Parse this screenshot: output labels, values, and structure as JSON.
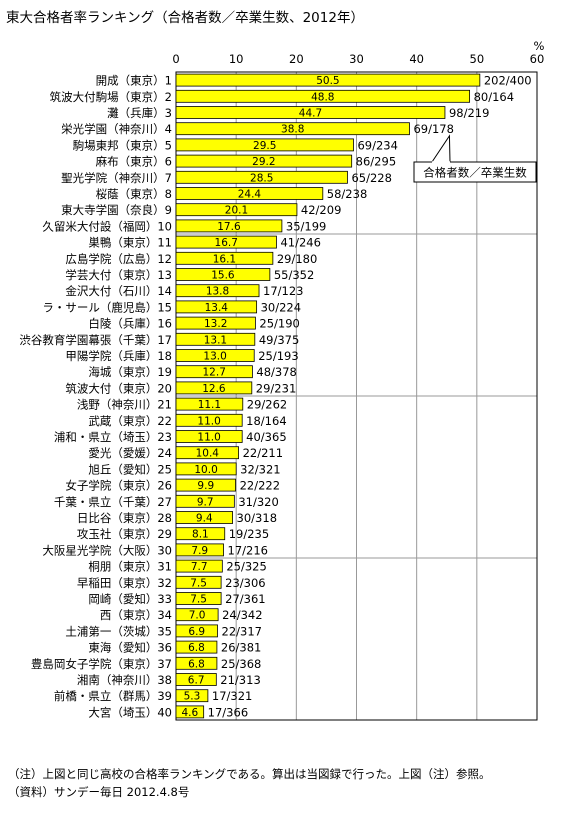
{
  "title": "東大合格者率ランキング（合格者数／卒業生数、2012年）",
  "callout": "合格者数／卒業生数",
  "footnotes": [
    "（注）上図と同じ高校の合格率ランキングである。算出は当図録で行った。上図（注）参照。",
    "（資料）サンデー毎日 2012.4.8号"
  ],
  "colors": {
    "bar": "#ffff00",
    "bar_stroke": "#000000",
    "grid": "#999999"
  },
  "chart_data": {
    "type": "bar",
    "orientation": "horizontal",
    "unit": "%",
    "xlim": [
      0,
      60
    ],
    "xticks": [
      0,
      10,
      20,
      30,
      40,
      50,
      60
    ],
    "grid": true,
    "categories": [
      "開成（東京）1",
      "筑波大付駒場（東京）2",
      "灘（兵庫）3",
      "栄光学園（神奈川）4",
      "駒場東邦（東京）5",
      "麻布（東京）6",
      "聖光学院（神奈川）7",
      "桜蔭（東京）8",
      "東大寺学園（奈良）9",
      "久留米大付設（福岡）10",
      "巣鴨（東京）11",
      "広島学院（広島）12",
      "学芸大付（東京）13",
      "金沢大付（石川）14",
      "ラ・サール（鹿児島）15",
      "白陵（兵庫）16",
      "渋谷教育学園幕張（千葉）17",
      "甲陽学院（兵庫）18",
      "海城（東京）19",
      "筑波大付（東京）20",
      "浅野（神奈川）21",
      "武蔵（東京）22",
      "浦和・県立（埼玉）23",
      "愛光（愛媛）24",
      "旭丘（愛知）25",
      "女子学院（東京）26",
      "千葉・県立（千葉）27",
      "日比谷（東京）28",
      "攻玉社（東京）29",
      "大阪星光学院（大阪）30",
      "桐朋（東京）31",
      "早稲田（東京）32",
      "岡崎（愛知）33",
      "西（東京）34",
      "土浦第一（茨城）35",
      "東海（愛知）36",
      "豊島岡女子学院（東京）37",
      "湘南（神奈川）38",
      "前橋・県立（群馬）39",
      "大宮（埼玉）40"
    ],
    "values": [
      50.5,
      48.8,
      44.7,
      38.8,
      29.5,
      29.2,
      28.5,
      24.4,
      20.1,
      17.6,
      16.7,
      16.1,
      15.6,
      13.8,
      13.4,
      13.2,
      13.1,
      13.0,
      12.7,
      12.6,
      11.1,
      11.0,
      11.0,
      10.4,
      10.0,
      9.9,
      9.7,
      9.4,
      8.1,
      7.9,
      7.7,
      7.5,
      7.5,
      7.0,
      6.9,
      6.8,
      6.8,
      6.7,
      5.3,
      4.6
    ],
    "value_labels": [
      "50.5",
      "48.8",
      "44.7",
      "38.8",
      "29.5",
      "29.2",
      "28.5",
      "24.4",
      "20.1",
      "17.6",
      "16.7",
      "16.1",
      "15.6",
      "13.8",
      "13.4",
      "13.2",
      "13.1",
      "13.0",
      "12.7",
      "12.6",
      "11.1",
      "11.0",
      "11.0",
      "10.4",
      "10.0",
      "9.9",
      "9.7",
      "9.4",
      "8.1",
      "7.9",
      "7.7",
      "7.5",
      "7.5",
      "7.0",
      "6.9",
      "6.8",
      "6.8",
      "6.7",
      "5.3",
      "4.6"
    ],
    "ratios": [
      "202/400",
      "80/164",
      "98/219",
      "69/178",
      "69/234",
      "86/295",
      "65/228",
      "58/238",
      "42/209",
      "35/199",
      "41/246",
      "29/180",
      "55/352",
      "17/123",
      "30/224",
      "25/190",
      "49/375",
      "25/193",
      "48/378",
      "29/231",
      "29/262",
      "18/164",
      "40/365",
      "22/211",
      "32/321",
      "22/222",
      "31/320",
      "30/318",
      "19/235",
      "17/216",
      "25/325",
      "23/306",
      "27/361",
      "24/342",
      "22/317",
      "26/381",
      "25/368",
      "21/313",
      "17/321",
      "17/366"
    ]
  }
}
